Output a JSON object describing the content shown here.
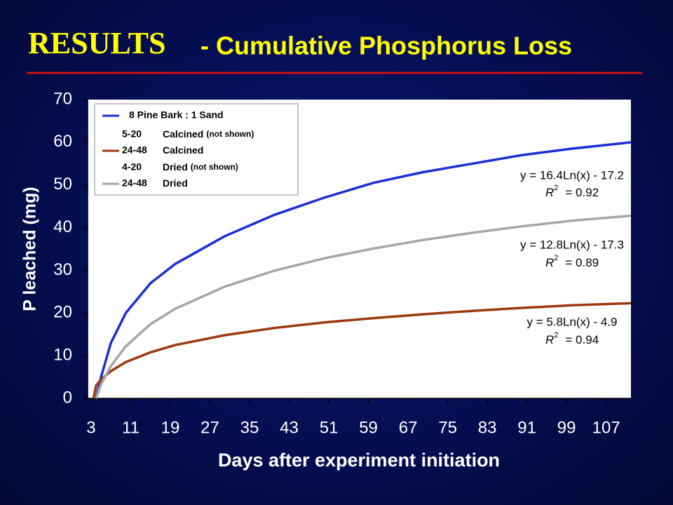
{
  "header": {
    "title_main": "RESULTS",
    "title_rest": " - Cumulative Phosphorus Loss"
  },
  "chart_data": {
    "type": "line",
    "ylabel": "P leached (mg)",
    "xlabel": "Days after experiment initiation",
    "xlim": [
      2.3,
      112
    ],
    "ylim": [
      0,
      70
    ],
    "xticks": [
      3,
      11,
      19,
      27,
      35,
      43,
      51,
      59,
      67,
      75,
      83,
      91,
      99,
      107
    ],
    "yticks": [
      0,
      10,
      20,
      30,
      40,
      50,
      60,
      70
    ],
    "x": [
      3.5,
      4,
      5,
      7,
      10,
      15,
      20,
      30,
      40,
      50,
      60,
      70,
      80,
      90,
      100,
      112
    ],
    "series": [
      {
        "name": "8 Pine Bark : 1 Sand",
        "color": "#1a2fd6",
        "values": [
          null,
          0,
          5,
          13,
          20,
          27,
          31.5,
          38,
          43,
          47,
          50.5,
          53,
          55,
          57,
          58.5,
          60
        ]
      },
      {
        "code": "24-48",
        "name": "Calcined",
        "color": "#9b3a0e",
        "values": [
          0,
          3,
          4.4,
          6.4,
          8.5,
          10.8,
          12.5,
          14.8,
          16.5,
          17.8,
          18.8,
          19.7,
          20.5,
          21.2,
          21.8,
          22.3
        ]
      },
      {
        "code": "24-48",
        "name": "Dried",
        "color": "#a6a6a6",
        "values": [
          null,
          0,
          3.3,
          7.6,
          12.2,
          17.4,
          21,
          26.2,
          29.9,
          32.8,
          35.1,
          37.1,
          38.8,
          40.3,
          41.6,
          42.8
        ]
      }
    ],
    "legend_notes": [
      {
        "code": "5-20",
        "name": "Calcined",
        "note": "(not shown)"
      },
      {
        "code": "4-20",
        "name": "Dried",
        "note": "(not shown)"
      }
    ],
    "annotations": [
      {
        "equation": "y = 16.4Ln(x) - 17.2",
        "r": "R",
        "exp": "2",
        "r2": "= 0.92"
      },
      {
        "equation": "y = 12.8Ln(x) - 17.3",
        "r": "R",
        "exp": "2",
        "r2": "= 0.89"
      },
      {
        "equation": "y = 5.8Ln(x) - 4.9",
        "r": "R",
        "exp": "2",
        "r2": "= 0.94"
      }
    ]
  }
}
